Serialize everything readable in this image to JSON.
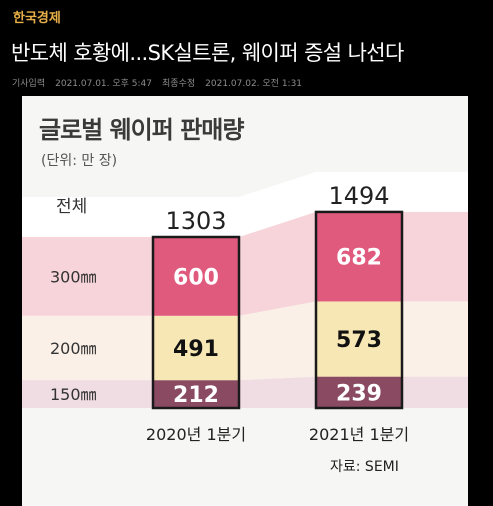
{
  "page": {
    "publisher": "한국경제",
    "headline": "반도체 호황에...SK실트론, 웨이퍼 증설 나선다",
    "meta": {
      "input_label": "기사입력",
      "input_date": "2021.07.01. 오후 5:47",
      "edit_label": "최종수정",
      "edit_date": "2021.07.02. 오전 1:31"
    }
  },
  "chart_data": {
    "type": "bar",
    "stacked": true,
    "title": "글로벌 웨이퍼 판매량",
    "unit_label": "(단위: 만 장)",
    "total_label": "전체",
    "categories": [
      "2020년 1분기",
      "2021년 1분기"
    ],
    "totals": [
      "1303",
      "1494"
    ],
    "series": [
      {
        "name": "150㎜",
        "values": [
          212,
          239
        ],
        "color": "#8a4a62",
        "label_color": "#ffffff"
      },
      {
        "name": "200㎜",
        "values": [
          491,
          573
        ],
        "color": "#f7e7b4",
        "label_color": "#111111"
      },
      {
        "name": "300㎜",
        "values": [
          600,
          682
        ],
        "color": "#e05a7e",
        "label_color": "#ffffff"
      }
    ],
    "source": "자료: SEMI",
    "colors": {
      "band_300": "#f7d4da",
      "band_200": "#fbf0e8",
      "band_150": "#f0dde3",
      "outline": "#1a1a1a"
    }
  }
}
